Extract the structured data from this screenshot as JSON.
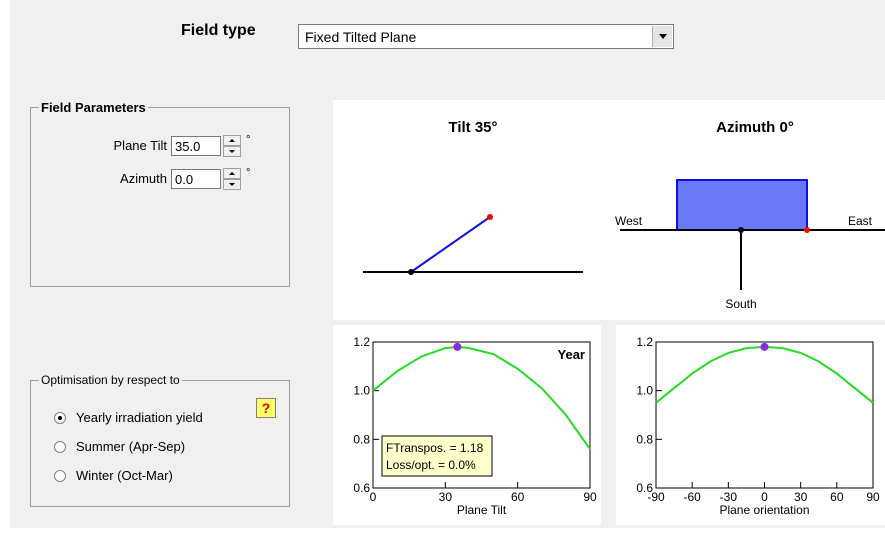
{
  "field_type": {
    "label": "Field type",
    "selected": "Fixed Tilted Plane"
  },
  "field_parameters": {
    "title": "Field Parameters",
    "plane_tilt": {
      "label": "Plane Tilt",
      "value": "35.0",
      "unit": "°"
    },
    "azimuth": {
      "label": "Azimuth",
      "value": "0.0",
      "unit": "°"
    }
  },
  "optimisation": {
    "title": "Optimisation by respect to",
    "options": [
      {
        "label": "Yearly irradiation yield",
        "checked": true
      },
      {
        "label": "Summer (Apr-Sep)",
        "checked": false
      },
      {
        "label": "Winter (Oct-Mar)",
        "checked": false
      }
    ],
    "help_label": "?"
  },
  "diagrams": {
    "tilt_title": "Tilt 35°",
    "azimuth_title": "Azimuth 0°",
    "west": "West",
    "east": "East",
    "south": "South"
  },
  "chart_data": [
    {
      "type": "line",
      "xlabel": "Plane Tilt",
      "xlim": [
        0,
        90
      ],
      "ylim": [
        0.6,
        1.2
      ],
      "x_ticks": [
        "0",
        "30",
        "60",
        "90"
      ],
      "y_ticks": [
        "0.6",
        "0.8",
        "1.0",
        "1.2"
      ],
      "annotation": "Year",
      "info_lines": [
        "FTranspos. = 1.18",
        "Loss/opt. = 0.0%"
      ],
      "marker": {
        "x": 35,
        "y": 1.18
      },
      "x": [
        0,
        10,
        20,
        30,
        35,
        40,
        50,
        60,
        70,
        80,
        90
      ],
      "y": [
        1.0,
        1.08,
        1.14,
        1.175,
        1.18,
        1.175,
        1.15,
        1.09,
        1.01,
        0.9,
        0.76
      ]
    },
    {
      "type": "line",
      "xlabel": "Plane orientation",
      "xlim": [
        -90,
        90
      ],
      "ylim": [
        0.6,
        1.2
      ],
      "x_ticks": [
        "-90",
        "-60",
        "-30",
        "0",
        "30",
        "60",
        "90"
      ],
      "y_ticks": [
        "0.6",
        "0.8",
        "1.0",
        "1.2"
      ],
      "marker": {
        "x": 0,
        "y": 1.18
      },
      "x": [
        -90,
        -75,
        -60,
        -45,
        -30,
        -15,
        0,
        15,
        30,
        45,
        60,
        75,
        90
      ],
      "y": [
        0.95,
        1.01,
        1.07,
        1.12,
        1.155,
        1.175,
        1.18,
        1.175,
        1.155,
        1.12,
        1.07,
        1.01,
        0.95
      ]
    }
  ]
}
